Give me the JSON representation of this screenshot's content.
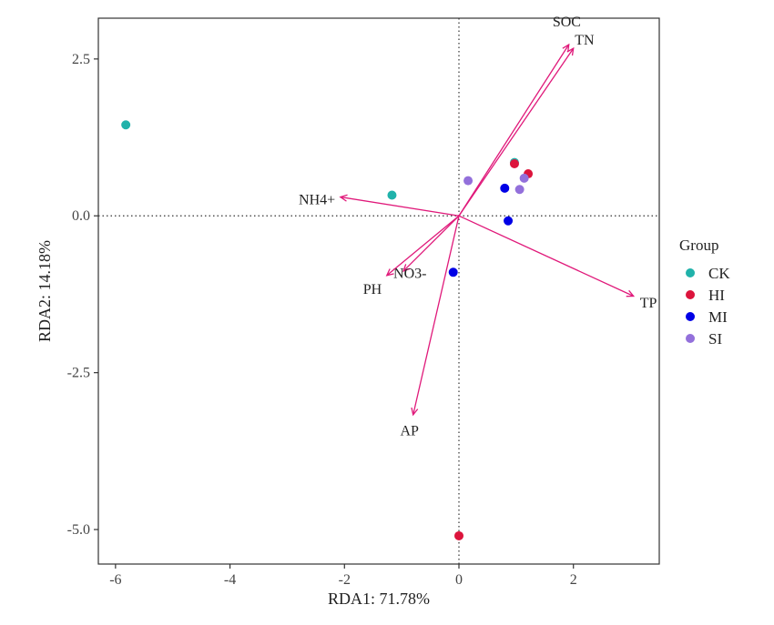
{
  "chart_data": {
    "type": "scatter",
    "title": "",
    "xlabel": "RDA1: 71.78%",
    "ylabel": "RDA2: 14.18%",
    "xlim": [
      -6.3,
      3.5
    ],
    "ylim": [
      -5.55,
      3.15
    ],
    "x_ticks": [
      {
        "value": -6,
        "label": "-6"
      },
      {
        "value": -4,
        "label": "-4"
      },
      {
        "value": -2,
        "label": "-2"
      },
      {
        "value": 0,
        "label": "0"
      },
      {
        "value": 2,
        "label": "2"
      }
    ],
    "y_ticks": [
      {
        "value": 2.5,
        "label": "2.5"
      },
      {
        "value": 0,
        "label": "0.0"
      },
      {
        "value": -2.5,
        "label": "-2.5"
      },
      {
        "value": -5,
        "label": "-5.0"
      }
    ],
    "grid": false,
    "reference_lines": {
      "x": 0,
      "y": 0,
      "style": "dotted"
    },
    "legend": {
      "title": "Group",
      "position": "right",
      "entries": [
        {
          "name": "CK",
          "color": "#20b2aa"
        },
        {
          "name": "HI",
          "color": "#dc143c"
        },
        {
          "name": "MI",
          "color": "#0000e6"
        },
        {
          "name": "SI",
          "color": "#9370db"
        }
      ]
    },
    "series": [
      {
        "name": "CK",
        "color": "#20b2aa",
        "points": [
          [
            -5.82,
            1.45
          ],
          [
            -1.17,
            0.33
          ],
          [
            0.97,
            0.85
          ]
        ]
      },
      {
        "name": "HI",
        "color": "#dc143c",
        "points": [
          [
            0.97,
            0.83
          ],
          [
            1.21,
            0.67
          ],
          [
            0.0,
            -5.1
          ]
        ]
      },
      {
        "name": "MI",
        "color": "#0000e6",
        "points": [
          [
            0.8,
            0.44
          ],
          [
            0.86,
            -0.08
          ],
          [
            -0.1,
            -0.9
          ]
        ]
      },
      {
        "name": "SI",
        "color": "#9370db",
        "points": [
          [
            0.16,
            0.56
          ],
          [
            1.06,
            0.42
          ],
          [
            1.14,
            0.6
          ]
        ]
      }
    ],
    "arrows": {
      "color": "#e0197a",
      "items": [
        {
          "label": "SOC",
          "x": 1.92,
          "y": 2.73
        },
        {
          "label": "TN",
          "x": 2.0,
          "y": 2.67
        },
        {
          "label": "NH4+",
          "x": -2.07,
          "y": 0.3
        },
        {
          "label": "NO3-",
          "x": -0.97,
          "y": -0.88
        },
        {
          "label": "PH",
          "x": -1.26,
          "y": -0.95
        },
        {
          "label": "TP",
          "x": 3.05,
          "y": -1.28
        },
        {
          "label": "AP",
          "x": -0.8,
          "y": -3.17
        }
      ]
    }
  }
}
